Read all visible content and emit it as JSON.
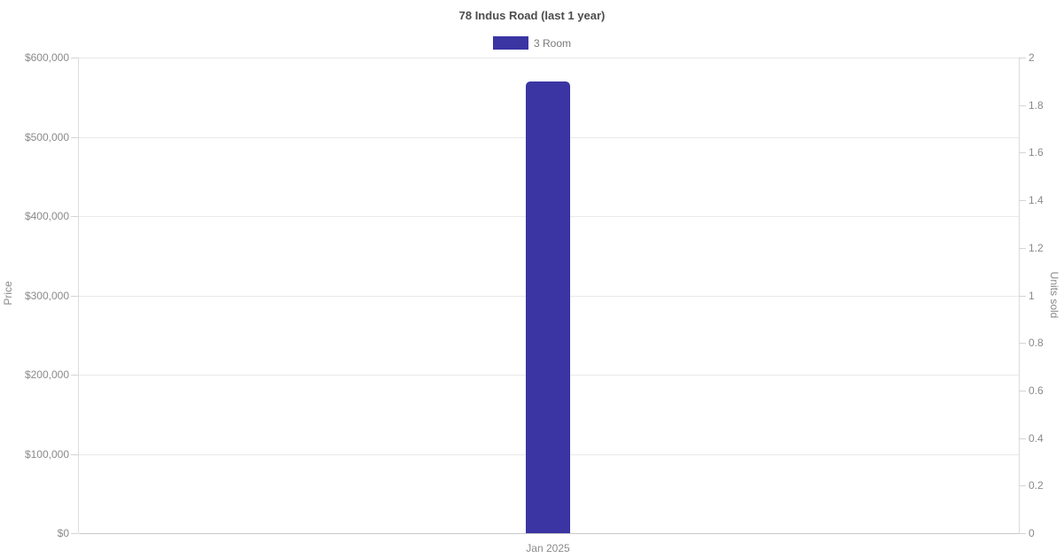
{
  "chart_data": {
    "type": "bar",
    "title": "78 Indus Road (last 1 year)",
    "categories": [
      "Jan 2025"
    ],
    "series": [
      {
        "name": "3 Room",
        "values": [
          570000
        ],
        "color": "#3a35a3",
        "axis": "left"
      }
    ],
    "legend": {
      "position": "top",
      "entries": [
        {
          "label": "3 Room",
          "color": "#3a35a3"
        }
      ]
    },
    "left_axis": {
      "label": "Price",
      "min": 0,
      "max": 600000,
      "tick_step": 100000,
      "tick_labels": [
        "$0",
        "$100,000",
        "$200,000",
        "$300,000",
        "$400,000",
        "$500,000",
        "$600,000"
      ]
    },
    "right_axis": {
      "label": "Units sold",
      "min": 0,
      "max": 2,
      "tick_step": 0.2,
      "tick_labels": [
        "0",
        "0.2",
        "0.4",
        "0.6",
        "0.8",
        "1",
        "1.2",
        "1.4",
        "1.6",
        "1.8",
        "2"
      ]
    },
    "grid": "horizontal-only",
    "colors": {
      "grid": "#e9e9e9",
      "axis_line": "#dcdcdc",
      "bottom_axis_line": "#c9c9c9",
      "tick_text": "#8a8a8a",
      "title_text": "#4d4d4d"
    }
  }
}
